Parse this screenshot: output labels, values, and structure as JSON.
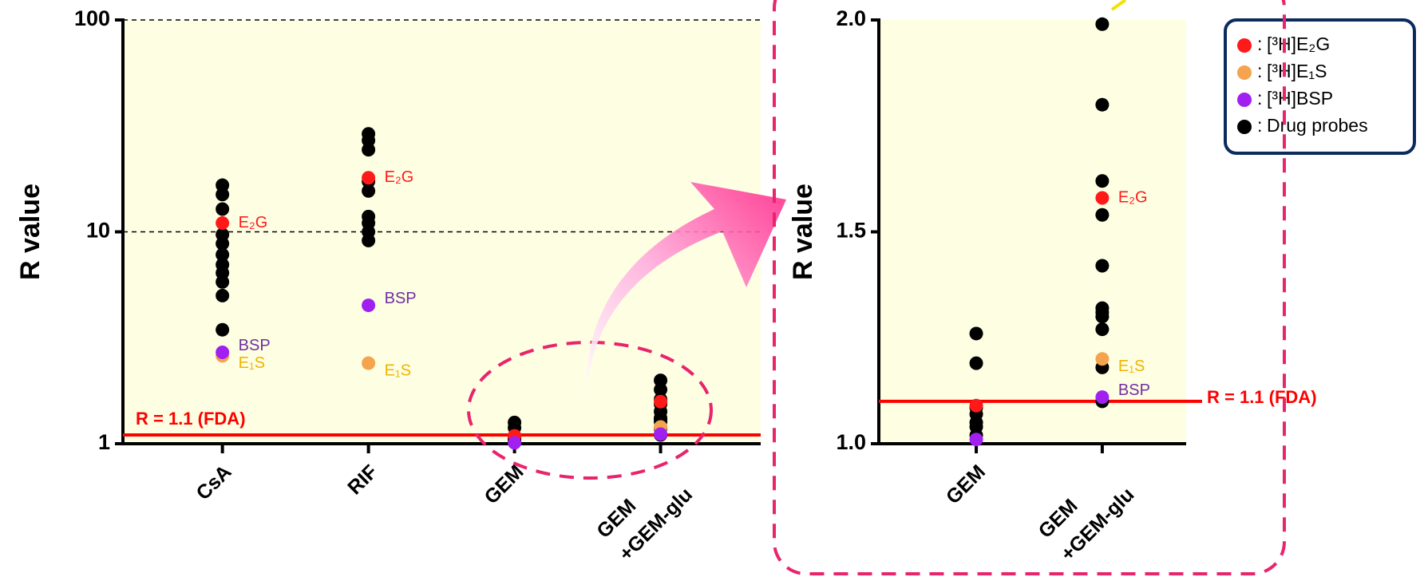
{
  "chart_data": [
    {
      "type": "strip",
      "y_label": "R value",
      "log_y": true,
      "categories": [
        "CsA",
        "RIF",
        "GEM",
        "GEM +GEM-glu"
      ],
      "ylim": [
        1,
        100
      ],
      "yticks": [
        1,
        10,
        100
      ],
      "grid": true,
      "reference_line": {
        "value": 1.1,
        "label": "R = 1.1 (FDA)",
        "color": "#ff0000"
      },
      "series": [
        {
          "color": "#ff1a1a",
          "label_color": "#ff1a1a",
          "values": [
            11.0,
            18.0,
            1.09,
            1.58
          ],
          "labels": [
            "E₂G",
            "E₂G",
            null,
            null
          ]
        },
        {
          "color": "#f5a34d",
          "label_color": "#f0b400",
          "values": [
            2.6,
            2.4,
            null,
            1.2
          ],
          "labels": [
            "E₁S",
            "E₁S",
            null,
            null
          ]
        },
        {
          "color": "#a020f0",
          "label_color": "#7030a0",
          "values": [
            2.7,
            4.5,
            1.01,
            1.11
          ],
          "labels": [
            "BSP",
            "BSP",
            null,
            null
          ]
        },
        {
          "color": "#000000",
          "values": [
            [
              16.6,
              15.0,
              12.8,
              9.7,
              8.8,
              7.8,
              7.0,
              6.4,
              5.8,
              5.0,
              3.45
            ],
            [
              29.0,
              27.0,
              24.4,
              17.3,
              15.6,
              11.8,
              11.0,
              10.0,
              9.1
            ],
            [
              1.26,
              1.19,
              1.085,
              1.07,
              1.05,
              1.04,
              1.02
            ],
            [
              1.99,
              1.8,
              1.62,
              1.54,
              1.42,
              1.32,
              1.31,
              1.3,
              1.27,
              1.18,
              1.1
            ]
          ]
        }
      ]
    },
    {
      "type": "strip",
      "y_label": "R value",
      "log_y": false,
      "categories": [
        "GEM",
        "GEM +GEM-glu"
      ],
      "ylim": [
        1,
        2
      ],
      "yticks": [
        {
          "value": 1,
          "label": "1.0"
        },
        1.5,
        {
          "value": 2,
          "label": "2.0"
        }
      ],
      "grid": false,
      "reference_line": {
        "value": 1.1,
        "label": "R = 1.1 (FDA)",
        "color": "#ff0000"
      },
      "legend": {
        "position": "upper right",
        "separator": ":"
      },
      "series": [
        {
          "name": "[³H]E₂G",
          "color": "#ff1a1a",
          "label_color": "#ff1a1a",
          "values": [
            1.09,
            1.58
          ],
          "labels": [
            null,
            "E₂G"
          ]
        },
        {
          "name": "[³H]E₁S",
          "color": "#f5a34d",
          "label_color": "#f0b400",
          "values": [
            null,
            1.2
          ],
          "labels": [
            null,
            "E₁S"
          ]
        },
        {
          "name": "[³H]BSP",
          "color": "#a020f0",
          "label_color": "#7030a0",
          "values": [
            1.01,
            1.11
          ],
          "labels": [
            null,
            "BSP"
          ]
        },
        {
          "name": "Drug probes",
          "color": "#000000",
          "values": [
            [
              1.26,
              1.19,
              1.085,
              1.07,
              1.05,
              1.04,
              1.02
            ],
            [
              1.99,
              1.8,
              1.62,
              1.54,
              1.42,
              1.32,
              1.31,
              1.3,
              1.27,
              1.18,
              1.1
            ]
          ]
        }
      ]
    }
  ]
}
